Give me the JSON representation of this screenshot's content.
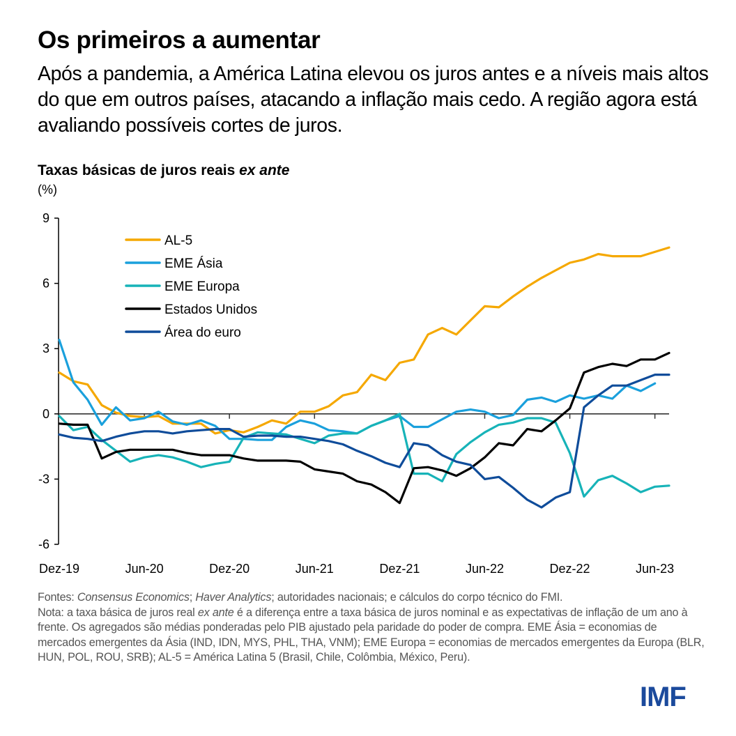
{
  "header": {
    "title": "Os primeiros a aumentar",
    "subtitle": "Após a pandemia, a América Latina elevou os juros antes e a níveis mais altos do que em outros países, atacando a inflação mais cedo. A região agora está avaliando possíveis cortes de juros."
  },
  "chart_meta": {
    "title_main": "Taxas básicas de juros reais ",
    "title_italic": "ex ante",
    "unit": "(%)"
  },
  "footer": {
    "sources_prefix": "Fontes: ",
    "sources_italic_1": "Consensus Economics",
    "sources_sep": "; ",
    "sources_italic_2": "Haver Analytics",
    "sources_rest": "; autoridades nacionais; e cálculos do corpo técnico do FMI.",
    "note_prefix": "Nota: a taxa básica de juros real ",
    "note_italic": "ex ante",
    "note_rest": " é a diferença entre a taxa básica de juros nominal e as expectativas de inflação de um ano à frente. Os agregados são médias ponderadas pelo PIB ajustado pela paridade do poder de compra. EME Ásia = economias de mercados emergentes da Ásia (IND, IDN, MYS, PHL, THA, VNM); EME Europa = economias de mercados emergentes da Europa (BLR, HUN, POL, ROU, SRB); AL-5 = América Latina 5 (Brasil, Chile, Colômbia, México, Peru).",
    "logo": "IMF"
  },
  "chart_data": {
    "type": "line",
    "title": "Taxas básicas de juros reais ex ante",
    "xlabel": "",
    "ylabel": "(%)",
    "ylim": [
      -6,
      9
    ],
    "yticks": [
      9,
      6,
      3,
      0,
      -3,
      -6
    ],
    "ytick_labels": [
      "9",
      "6",
      "3",
      "0",
      "-3",
      "-6"
    ],
    "x": [
      "Dez-19",
      "Jan-20",
      "Fev-20",
      "Mar-20",
      "Abr-20",
      "Mai-20",
      "Jun-20",
      "Jul-20",
      "Ago-20",
      "Set-20",
      "Out-20",
      "Nov-20",
      "Dez-20",
      "Jan-21",
      "Fev-21",
      "Mar-21",
      "Abr-21",
      "Mai-21",
      "Jun-21",
      "Jul-21",
      "Ago-21",
      "Set-21",
      "Out-21",
      "Nov-21",
      "Dez-21",
      "Jan-22",
      "Fev-22",
      "Mar-22",
      "Abr-22",
      "Mai-22",
      "Jun-22",
      "Jul-22",
      "Ago-22",
      "Set-22",
      "Out-22",
      "Nov-22",
      "Dez-22",
      "Jan-23",
      "Fev-23",
      "Mar-23",
      "Abr-23",
      "Mai-23",
      "Jun-23",
      "Jul-23"
    ],
    "xtick_labels": [
      "Dez-19",
      "Jun-20",
      "Dez-20",
      "Jun-21",
      "Dez-21",
      "Jun-22",
      "Dez-22",
      "Jun-23"
    ],
    "xtick_every": 6,
    "grid": false,
    "legend_position": "top-left",
    "series": [
      {
        "name": "AL-5",
        "color": "#F5A800",
        "values": [
          1.9,
          1.5,
          1.35,
          0.4,
          0.05,
          -0.1,
          -0.15,
          -0.1,
          -0.45,
          -0.45,
          -0.45,
          -0.9,
          -0.75,
          -0.85,
          -0.6,
          -0.3,
          -0.45,
          0.1,
          0.1,
          0.35,
          0.85,
          1.0,
          1.8,
          1.55,
          2.35,
          2.5,
          3.65,
          3.95,
          3.65,
          4.3,
          4.95,
          4.9,
          5.4,
          5.85,
          6.25,
          6.6,
          6.95,
          7.1,
          7.35,
          7.25,
          7.25,
          7.25,
          7.45,
          7.65
        ]
      },
      {
        "name": "EME Ásia",
        "color": "#1AA0DC",
        "values": [
          3.4,
          1.45,
          0.65,
          -0.5,
          0.3,
          -0.3,
          -0.2,
          0.1,
          -0.35,
          -0.5,
          -0.3,
          -0.55,
          -1.15,
          -1.15,
          -1.2,
          -1.2,
          -0.6,
          -0.3,
          -0.45,
          -0.75,
          -0.8,
          -0.9,
          -0.55,
          -0.3,
          -0.1,
          -0.6,
          -0.6,
          -0.25,
          0.1,
          0.2,
          0.1,
          -0.2,
          -0.05,
          0.65,
          0.75,
          0.55,
          0.85,
          0.7,
          0.85,
          0.7,
          1.3,
          1.05,
          1.4,
          null
        ]
      },
      {
        "name": "EME Europa",
        "color": "#17B3B8",
        "values": [
          -0.1,
          -0.75,
          -0.6,
          -1.2,
          -1.7,
          -2.2,
          -2.0,
          -1.9,
          -2.0,
          -2.2,
          -2.45,
          -2.3,
          -2.2,
          -1.1,
          -0.85,
          -0.9,
          -0.95,
          -1.15,
          -1.35,
          -1.0,
          -0.9,
          -0.9,
          -0.55,
          -0.3,
          0.0,
          -2.75,
          -2.75,
          -3.1,
          -1.85,
          -1.3,
          -0.85,
          -0.5,
          -0.4,
          -0.2,
          -0.2,
          -0.4,
          -1.8,
          -3.8,
          -3.05,
          -2.85,
          -3.2,
          -3.6,
          -3.35,
          -3.3
        ]
      },
      {
        "name": "Estados Unidos",
        "color": "#000000",
        "values": [
          -0.45,
          -0.5,
          -0.5,
          -2.05,
          -1.75,
          -1.65,
          -1.65,
          -1.65,
          -1.65,
          -1.8,
          -1.9,
          -1.9,
          -1.9,
          -2.05,
          -2.15,
          -2.15,
          -2.15,
          -2.2,
          -2.55,
          -2.65,
          -2.75,
          -3.1,
          -3.25,
          -3.6,
          -4.1,
          -2.5,
          -2.45,
          -2.6,
          -2.85,
          -2.5,
          -2.0,
          -1.35,
          -1.45,
          -0.7,
          -0.8,
          -0.3,
          0.25,
          1.9,
          2.15,
          2.3,
          2.2,
          2.5,
          2.5,
          2.8
        ]
      },
      {
        "name": "Área do euro",
        "color": "#0F4C9A",
        "values": [
          -0.95,
          -1.1,
          -1.15,
          -1.25,
          -1.05,
          -0.9,
          -0.8,
          -0.8,
          -0.9,
          -0.8,
          -0.75,
          -0.7,
          -0.7,
          -1.05,
          -1.0,
          -1.0,
          -1.05,
          -1.05,
          -1.15,
          -1.25,
          -1.4,
          -1.7,
          -1.95,
          -2.25,
          -2.45,
          -1.35,
          -1.45,
          -1.9,
          -2.2,
          -2.35,
          -3.0,
          -2.9,
          -3.4,
          -3.95,
          -4.3,
          -3.85,
          -3.6,
          0.3,
          0.85,
          1.3,
          1.3,
          1.55,
          1.8,
          1.8
        ]
      }
    ]
  }
}
